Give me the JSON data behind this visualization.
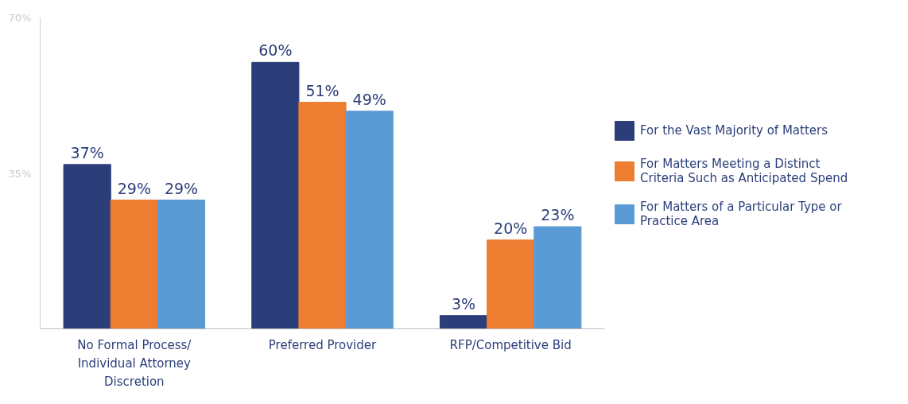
{
  "chart_data": {
    "type": "bar",
    "categories": [
      "No Formal Process/ Individual Attorney Discretion",
      "Preferred Provider",
      "RFP/Competitive Bid"
    ],
    "series": [
      {
        "name": "For the Vast Majority of Matters",
        "color": "#2b3e7a",
        "values": [
          37,
          60,
          3
        ],
        "value_labels": [
          "37%",
          "60%",
          "3%"
        ]
      },
      {
        "name": "For Matters Meeting a Distinct Criteria Such as Anticipated Spend",
        "color": "#ed7d31",
        "values": [
          29,
          51,
          20
        ],
        "value_labels": [
          "29%",
          "51%",
          "20%"
        ]
      },
      {
        "name": "For Matters of a Particular Type or Practice Area",
        "color": "#5b9bd5",
        "values": [
          29,
          49,
          23
        ],
        "value_labels": [
          "29%",
          "49%",
          "23%"
        ]
      }
    ],
    "ylim": [
      0,
      70
    ],
    "yticks": [
      {
        "value": 35,
        "label": "35%"
      },
      {
        "value": 70,
        "label": "70%"
      }
    ],
    "grid": false,
    "legend": "right"
  }
}
